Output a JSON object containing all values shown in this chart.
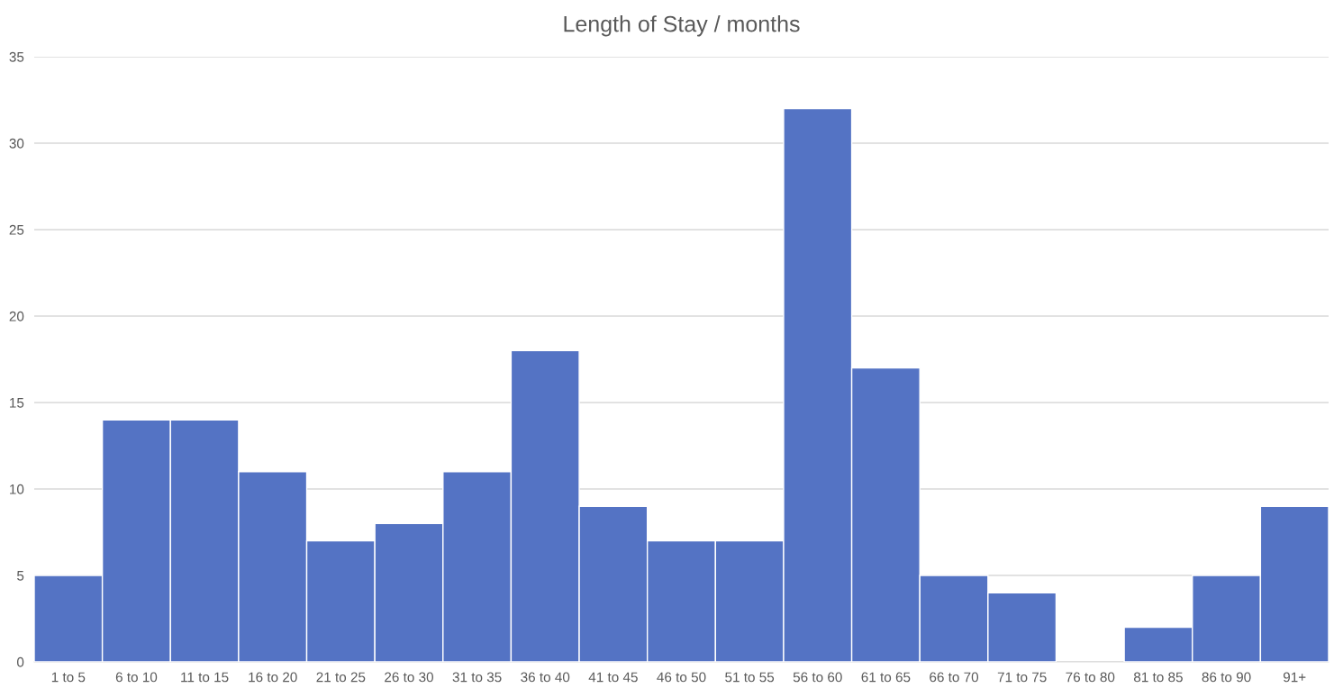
{
  "chart_data": {
    "type": "bar",
    "title": "Length of Stay / months",
    "categories": [
      "1 to 5",
      "6 to 10",
      "11 to 15",
      "16 to 20",
      "21 to 25",
      "26 to 30",
      "31 to 35",
      "36 to 40",
      "41 to 45",
      "46 to 50",
      "51 to 55",
      "56 to 60",
      "61 to 65",
      "66 to 70",
      "71 to 75",
      "76 to 80",
      "81 to 85",
      "86 to 90",
      "91+"
    ],
    "values": [
      5,
      14,
      14,
      11,
      7,
      8,
      11,
      18,
      9,
      7,
      7,
      32,
      17,
      5,
      4,
      0,
      2,
      5,
      9
    ],
    "color": "#5473c4",
    "ylim": [
      0,
      35
    ],
    "yticks": [
      0,
      5,
      10,
      15,
      20,
      25,
      30,
      35
    ],
    "grid": "y"
  }
}
